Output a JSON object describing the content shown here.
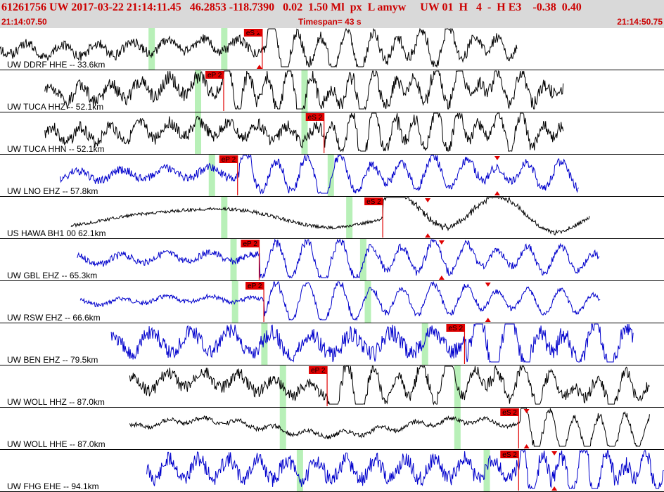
{
  "header": {
    "title": "61261756 UW 2017-03-22 21:14:11.45   46.2853 -118.7390   0.02  1.50 Ml  px  L amyw     UW 01  H   4  -  H E3    -0.38  0.40",
    "start_time": "21:14:07.50",
    "timespan": "Timespan=  43 s",
    "end_time": "21:14:50.75"
  },
  "colors": {
    "header_bg": "#d9d9d9",
    "header_text": "#cc0000",
    "pick_bg": "#e00000",
    "window_green": "#b8f0b8",
    "trace_black": "#000000",
    "trace_blue": "#0000cc",
    "marker_red": "#e00000"
  },
  "chart_data": {
    "type": "line",
    "title": "61261756 UW 2017-03-22 21:14:11.45",
    "x_axis": {
      "start": "21:14:07.50",
      "end": "21:14:50.75",
      "span_s": 43
    },
    "panels": [
      {
        "label": "UW DDRF HHE -- 33.6km",
        "color": "black",
        "start_s": 0.0,
        "end_s": 33.5,
        "amp": 0.18,
        "freq": 2.5,
        "seed": 1,
        "onset_s": 17.3,
        "pick_label": "eS 2",
        "pick_s": 15.8,
        "green_s": [
          9.8,
          14.5
        ],
        "markers_s": [
          16.8
        ],
        "slow": 0.3
      },
      {
        "label": "UW TUCA HHZ -- 52.1km",
        "color": "black",
        "start_s": 2.9,
        "end_s": 36.5,
        "amp": 0.25,
        "freq": 3.0,
        "seed": 2,
        "onset_s": 14.5,
        "pick_label": "eP 2",
        "pick_s": 13.3,
        "green_s": [
          12.8,
          19.7
        ],
        "markers_s": [],
        "slow": 0.5
      },
      {
        "label": "UW TUCA HHN -- 52.1km",
        "color": "black",
        "start_s": 2.9,
        "end_s": 36.5,
        "amp": 0.22,
        "freq": 3.0,
        "seed": 3,
        "onset_s": 21.0,
        "pick_label": "eS 2",
        "pick_s": 19.8,
        "green_s": [
          12.8,
          19.7
        ],
        "markers_s": [],
        "slow": 0.3
      },
      {
        "label": "UW LNO EHZ -- 57.8km",
        "color": "blue",
        "start_s": 3.9,
        "end_s": 37.5,
        "amp": 0.15,
        "freq": 2.0,
        "seed": 4,
        "onset_s": 15.5,
        "pick_label": "eP 2",
        "pick_s": 14.2,
        "green_s": [
          13.7,
          21.4
        ],
        "markers_s": [
          32.2
        ],
        "slow": 0.2
      },
      {
        "label": "US HAWA BH1 00 62.1km",
        "color": "black",
        "start_s": 4.6,
        "end_s": 38.2,
        "amp": 0.06,
        "freq": 0.6,
        "seed": 5,
        "onset_s": 24.8,
        "pick_label": "eS 2",
        "pick_s": 23.6,
        "green_s": [
          14.5,
          22.6
        ],
        "markers_s": [
          27.7
        ],
        "slow": 0.9
      },
      {
        "label": "UW GBL EHZ -- 65.3km",
        "color": "blue",
        "start_s": 5.0,
        "end_s": 38.8,
        "amp": 0.12,
        "freq": 2.0,
        "seed": 6,
        "onset_s": 16.8,
        "pick_label": "eP 2",
        "pick_s": 15.6,
        "green_s": [
          15.1,
          23.5
        ],
        "markers_s": [
          28.6
        ],
        "slow": 0.2
      },
      {
        "label": "UW RSW EHZ -- 66.6km",
        "color": "blue",
        "start_s": 5.2,
        "end_s": 38.9,
        "amp": 0.08,
        "freq": 2.0,
        "seed": 7,
        "onset_s": 17.1,
        "pick_label": "eP 2",
        "pick_s": 15.9,
        "green_s": [
          15.2,
          23.8
        ],
        "markers_s": [
          31.6
        ],
        "slow": 0.2
      },
      {
        "label": "UW BEN EHZ -- 79.5km",
        "color": "blue",
        "start_s": 7.2,
        "end_s": 41.0,
        "amp": 0.3,
        "freq": 2.2,
        "seed": 8,
        "onset_s": 30.2,
        "pick_label": "eS 2",
        "pick_s": 28.9,
        "green_s": [
          17.1,
          27.5
        ],
        "markers_s": [],
        "slow": 0.2
      },
      {
        "label": "UW WOLL HHZ -- 87.0km",
        "color": "black",
        "start_s": 8.4,
        "end_s": 42.1,
        "amp": 0.22,
        "freq": 2.5,
        "seed": 9,
        "onset_s": 21.2,
        "pick_label": "eP 2",
        "pick_s": 20.0,
        "green_s": [
          18.3,
          29.6
        ],
        "markers_s": [],
        "slow": 0.6
      },
      {
        "label": "UW WOLL HHE -- 87.0km",
        "color": "black",
        "start_s": 8.4,
        "end_s": 42.1,
        "amp": 0.08,
        "freq": 2.5,
        "seed": 10,
        "onset_s": 33.7,
        "pick_label": "eS 2",
        "pick_s": 32.4,
        "green_s": [
          18.3,
          29.6
        ],
        "markers_s": [
          34.1
        ],
        "slow": 0.7
      },
      {
        "label": "UW FHG EHE -- 94.1km",
        "color": "blue",
        "start_s": 9.5,
        "end_s": 43.0,
        "amp": 0.28,
        "freq": 3.0,
        "seed": 11,
        "onset_s": 33.7,
        "pick_label": "eS 2",
        "pick_s": 32.4,
        "green_s": [
          19.4,
          31.5
        ],
        "markers_s": [
          35.9
        ],
        "slow": 0.1
      }
    ]
  }
}
